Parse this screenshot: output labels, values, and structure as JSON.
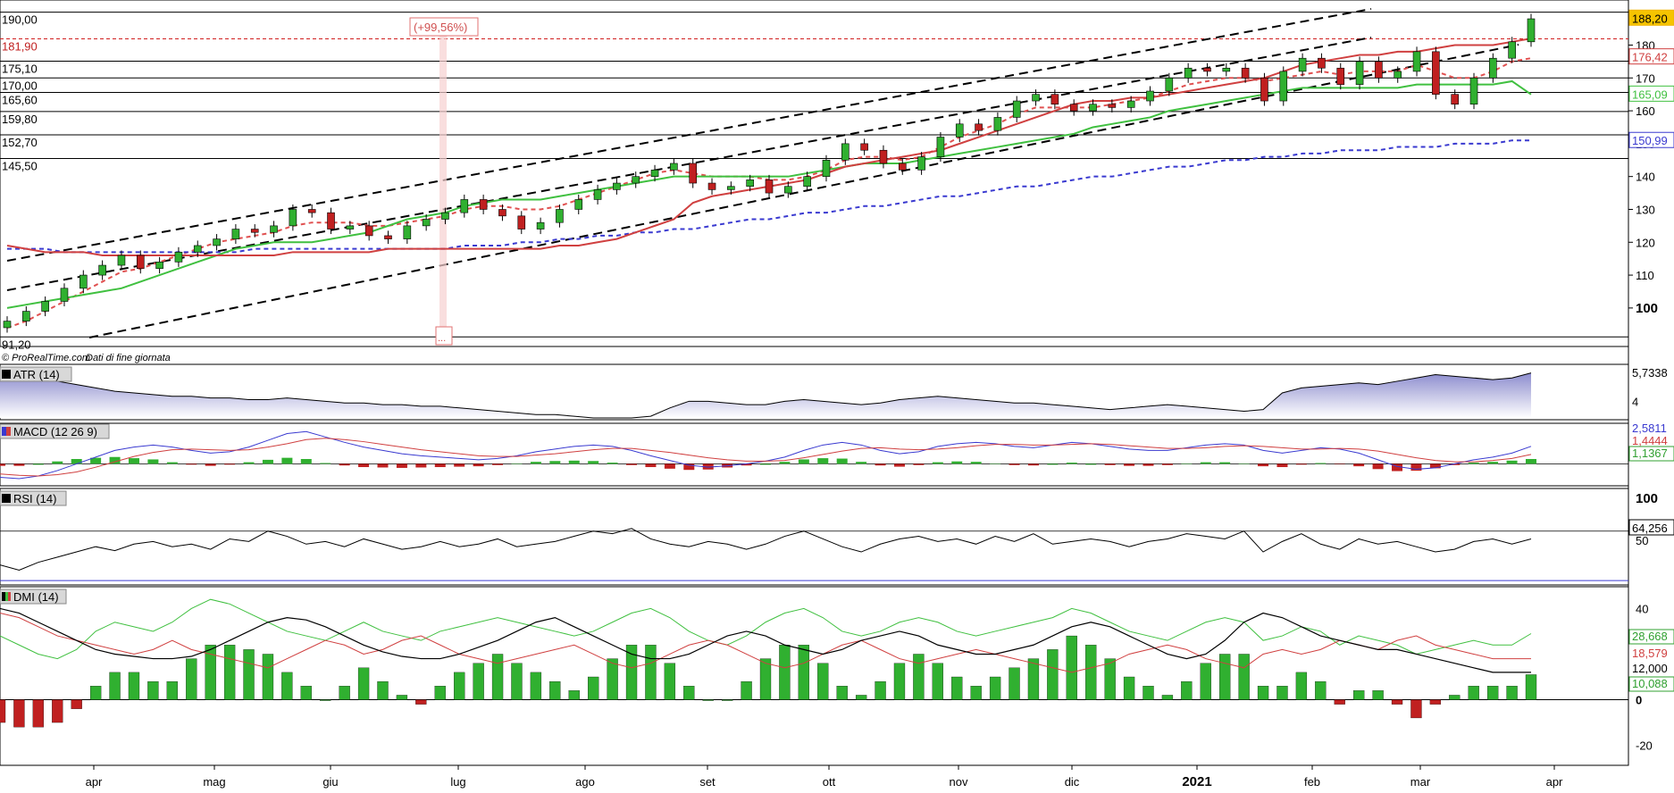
{
  "chart_data": [
    {
      "type": "candlestick",
      "panel": "price",
      "credit": "© ProRealTime.com",
      "credit_note": "Dati di fine giornata",
      "x_labels": [
        "apr",
        "mag",
        "giu",
        "lug",
        "ago",
        "set",
        "ott",
        "nov",
        "dic",
        "2021",
        "feb",
        "mar",
        "apr"
      ],
      "y_ticks": [
        100,
        110,
        120,
        130,
        140,
        150,
        160,
        170,
        180
      ],
      "ylim": [
        91,
        191
      ],
      "last_price": "188,20",
      "price_levels": [
        "190,00",
        "181,90",
        "175,10",
        "170,00",
        "165,60",
        "159,80",
        "152,70",
        "145,50",
        "91,20"
      ],
      "right_values": [
        "188,20",
        "176,42",
        "165,09",
        "150,99"
      ],
      "annotation": "(+99,56%)",
      "annotation_box": "...",
      "close_series": [
        96,
        99,
        102,
        106,
        110,
        113,
        116,
        112,
        114,
        117,
        119,
        121,
        124,
        123,
        125,
        130,
        129,
        124,
        125,
        122,
        121,
        125,
        127,
        129,
        133,
        130,
        128,
        124,
        126,
        130,
        133,
        136,
        138,
        140,
        142,
        144,
        138,
        136,
        137,
        139,
        135,
        137,
        140,
        145,
        150,
        148,
        144,
        142,
        146,
        152,
        156,
        154,
        158,
        163,
        165,
        162,
        160,
        162,
        161,
        163,
        166,
        170,
        173,
        172,
        173,
        170,
        163,
        172,
        176,
        173,
        168,
        175,
        170,
        172,
        178,
        165,
        162,
        170,
        176,
        181,
        188
      ],
      "overlay_series": [
        {
          "name": "ema-red-dashed",
          "color": "#e05050",
          "values": [
            94,
            96,
            99,
            102,
            105,
            108,
            111,
            112,
            114,
            116,
            118,
            120,
            121,
            122,
            123,
            125,
            126,
            126,
            126,
            125,
            125,
            126,
            127,
            128,
            130,
            131,
            131,
            130,
            130,
            131,
            133,
            135,
            137,
            139,
            141,
            142,
            141,
            140,
            140,
            140,
            139,
            139,
            140,
            142,
            145,
            146,
            146,
            145,
            146,
            149,
            152,
            154,
            156,
            159,
            161,
            161,
            161,
            161,
            162,
            163,
            164,
            166,
            168,
            169,
            170,
            170,
            169,
            170,
            171,
            172,
            171,
            172,
            172,
            172,
            174,
            172,
            170,
            170,
            172,
            175,
            176
          ]
        },
        {
          "name": "sma-blue-dashed",
          "color": "#3a3ad0",
          "values": [
            118,
            118,
            118,
            117,
            117,
            117,
            117,
            117,
            117,
            117,
            117,
            117,
            117,
            118,
            118,
            118,
            118,
            118,
            118,
            118,
            118,
            118,
            118,
            118,
            119,
            119,
            119,
            120,
            120,
            121,
            121,
            122,
            122,
            123,
            123,
            124,
            124,
            125,
            126,
            127,
            127,
            128,
            129,
            129,
            130,
            131,
            131,
            132,
            133,
            134,
            134,
            135,
            136,
            137,
            137,
            138,
            139,
            140,
            140,
            141,
            142,
            143,
            143,
            144,
            145,
            145,
            146,
            146,
            147,
            147,
            148,
            148,
            148,
            149,
            149,
            149,
            150,
            150,
            150,
            151,
            151
          ]
        },
        {
          "name": "stop-green",
          "color": "#40c040",
          "values": [
            100,
            101,
            102,
            103,
            104,
            105,
            106,
            108,
            110,
            112,
            114,
            116,
            118,
            119,
            120,
            120,
            120,
            121,
            122,
            123,
            125,
            127,
            128,
            129,
            131,
            132,
            133,
            133,
            133,
            134,
            135,
            136,
            137,
            138,
            139,
            140,
            140,
            140,
            140,
            140,
            140,
            140,
            141,
            142,
            143,
            144,
            144,
            144,
            145,
            146,
            147,
            148,
            149,
            150,
            151,
            152,
            153,
            155,
            156,
            157,
            158,
            160,
            161,
            162,
            163,
            164,
            165,
            166,
            167,
            167,
            167,
            167,
            167,
            167,
            168,
            168,
            168,
            168,
            168,
            169,
            165
          ]
        },
        {
          "name": "channel-red",
          "color": "#d04040",
          "values": [
            119,
            118,
            117,
            117,
            117,
            116,
            116,
            116,
            116,
            116,
            116,
            116,
            116,
            116,
            116,
            117,
            117,
            117,
            117,
            117,
            118,
            118,
            118,
            118,
            118,
            118,
            118,
            118,
            118,
            119,
            119,
            120,
            121,
            123,
            125,
            127,
            132,
            134,
            135,
            136,
            137,
            138,
            139,
            141,
            143,
            144,
            145,
            146,
            147,
            148,
            150,
            152,
            154,
            156,
            158,
            160,
            162,
            163,
            163,
            164,
            164,
            165,
            166,
            167,
            168,
            169,
            170,
            172,
            174,
            175,
            176,
            177,
            177,
            178,
            178,
            179,
            180,
            180,
            180,
            181,
            182
          ]
        }
      ]
    },
    {
      "type": "area",
      "panel": "atr",
      "title": "ATR (14)",
      "right_values": [
        "5,7338",
        "4"
      ],
      "values": [
        5.6,
        5.8,
        5.5,
        5.2,
        5.0,
        4.8,
        4.6,
        4.5,
        4.4,
        4.3,
        4.3,
        4.2,
        4.2,
        4.1,
        4.1,
        4.2,
        4.1,
        4.0,
        3.9,
        3.9,
        3.8,
        3.8,
        3.7,
        3.7,
        3.6,
        3.5,
        3.4,
        3.3,
        3.2,
        3.2,
        3.1,
        3.0,
        3.0,
        3.0,
        3.1,
        3.6,
        4.0,
        4.0,
        3.9,
        3.8,
        3.8,
        4.0,
        4.1,
        4.0,
        3.9,
        3.8,
        3.9,
        4.1,
        4.2,
        4.3,
        4.2,
        4.1,
        4.0,
        3.9,
        3.9,
        3.8,
        3.7,
        3.6,
        3.5,
        3.6,
        3.7,
        3.8,
        3.7,
        3.6,
        3.5,
        3.4,
        3.5,
        4.5,
        4.8,
        4.9,
        5.0,
        5.1,
        5.0,
        5.2,
        5.4,
        5.6,
        5.5,
        5.4,
        5.3,
        5.4,
        5.7
      ],
      "ylim": [
        3,
        6
      ]
    },
    {
      "type": "line-bar",
      "panel": "macd",
      "title": "MACD (12 26 9)",
      "right_values": [
        "2,5811",
        "1,4444",
        "1,1367"
      ],
      "macd": [
        -2,
        -2.2,
        -1.8,
        -1.0,
        0,
        1,
        2,
        2.5,
        2.8,
        2.5,
        2,
        1.6,
        1.8,
        2.5,
        3.5,
        4.5,
        4.8,
        4.0,
        3.2,
        2.5,
        2.0,
        1.5,
        1.2,
        1.0,
        0.8,
        0.6,
        0.8,
        1.2,
        1.8,
        2.2,
        2.6,
        2.8,
        2.6,
        2.0,
        1.2,
        0.5,
        -0.2,
        -0.5,
        -0.3,
        0,
        0.4,
        1.0,
        2.0,
        2.8,
        3.2,
        2.8,
        2.0,
        1.5,
        1.8,
        2.6,
        3.0,
        3.2,
        3.0,
        2.6,
        2.4,
        2.8,
        3.2,
        3.0,
        2.6,
        2.2,
        2.0,
        2.0,
        2.4,
        2.8,
        3.0,
        2.8,
        2.0,
        1.6,
        2.0,
        2.4,
        2.2,
        1.6,
        0.6,
        -0.4,
        -0.8,
        -0.6,
        0,
        0.6,
        1.0,
        1.6,
        2.6
      ],
      "signal": [
        -1.5,
        -1.7,
        -1.8,
        -1.6,
        -1.2,
        -0.5,
        0.3,
        1.1,
        1.7,
        2.1,
        2.2,
        2.1,
        2.0,
        2.1,
        2.5,
        3.0,
        3.6,
        3.8,
        3.6,
        3.3,
        2.9,
        2.5,
        2.1,
        1.8,
        1.5,
        1.2,
        1.1,
        1.1,
        1.3,
        1.5,
        1.8,
        2.1,
        2.3,
        2.3,
        2.0,
        1.7,
        1.3,
        0.9,
        0.6,
        0.4,
        0.4,
        0.5,
        0.9,
        1.4,
        1.9,
        2.3,
        2.4,
        2.2,
        2.1,
        2.2,
        2.4,
        2.7,
        2.9,
        2.9,
        2.8,
        2.8,
        2.9,
        3.0,
        2.9,
        2.7,
        2.5,
        2.3,
        2.3,
        2.4,
        2.6,
        2.7,
        2.6,
        2.4,
        2.2,
        2.2,
        2.3,
        2.2,
        1.9,
        1.4,
        0.9,
        0.5,
        0.3,
        0.3,
        0.5,
        0.8,
        1.4
      ],
      "ylim": [
        -3,
        5.5
      ]
    },
    {
      "type": "line",
      "panel": "rsi",
      "title": "RSI (14)",
      "y_ticks": [
        "100",
        "50"
      ],
      "right_values": [
        "64,256",
        "50"
      ],
      "values": [
        44,
        40,
        46,
        50,
        54,
        58,
        55,
        60,
        62,
        58,
        60,
        56,
        64,
        62,
        70,
        66,
        60,
        62,
        58,
        64,
        60,
        56,
        58,
        62,
        58,
        60,
        64,
        58,
        60,
        62,
        66,
        70,
        68,
        72,
        64,
        60,
        58,
        62,
        60,
        56,
        60,
        66,
        70,
        64,
        58,
        54,
        60,
        64,
        66,
        62,
        64,
        60,
        66,
        62,
        68,
        60,
        62,
        64,
        62,
        58,
        62,
        64,
        68,
        66,
        64,
        70,
        54,
        62,
        68,
        60,
        56,
        64,
        60,
        62,
        58,
        54,
        56,
        62,
        64,
        60,
        64
      ],
      "ylim": [
        30,
        100
      ]
    },
    {
      "type": "line-bar",
      "panel": "dmi",
      "title": "DMI (14)",
      "y_ticks": [
        "40",
        "0",
        "-20"
      ],
      "right_values": [
        "28,668",
        "18,579",
        "12,000",
        "10,088"
      ],
      "adx": [
        40,
        38,
        34,
        30,
        26,
        22,
        20,
        19,
        18,
        18,
        19,
        22,
        26,
        30,
        34,
        36,
        35,
        32,
        28,
        24,
        21,
        19,
        18,
        18,
        20,
        23,
        26,
        30,
        34,
        36,
        32,
        28,
        24,
        20,
        18,
        18,
        20,
        24,
        28,
        30,
        28,
        24,
        22,
        20,
        22,
        26,
        28,
        30,
        28,
        24,
        22,
        20,
        20,
        22,
        24,
        28,
        32,
        34,
        32,
        28,
        24,
        20,
        18,
        20,
        26,
        34,
        38,
        36,
        32,
        28,
        26,
        24,
        22,
        22,
        20,
        18,
        16,
        14,
        12,
        12,
        12
      ],
      "dip": [
        28,
        24,
        20,
        18,
        22,
        30,
        34,
        32,
        30,
        34,
        40,
        44,
        42,
        38,
        34,
        30,
        28,
        26,
        30,
        34,
        30,
        28,
        26,
        30,
        32,
        34,
        36,
        34,
        32,
        30,
        28,
        30,
        34,
        38,
        40,
        36,
        30,
        26,
        24,
        28,
        34,
        38,
        40,
        36,
        30,
        28,
        30,
        34,
        36,
        34,
        30,
        28,
        30,
        32,
        34,
        36,
        40,
        38,
        34,
        30,
        28,
        26,
        30,
        34,
        36,
        34,
        26,
        28,
        32,
        30,
        24,
        28,
        26,
        24,
        20,
        22,
        24,
        26,
        24,
        24,
        29
      ],
      "dim": [
        38,
        36,
        32,
        28,
        26,
        24,
        22,
        20,
        22,
        26,
        22,
        20,
        18,
        16,
        14,
        18,
        22,
        26,
        24,
        20,
        22,
        26,
        28,
        24,
        20,
        18,
        16,
        18,
        20,
        22,
        24,
        20,
        16,
        14,
        16,
        20,
        24,
        26,
        24,
        20,
        16,
        14,
        16,
        20,
        24,
        26,
        22,
        18,
        16,
        18,
        20,
        22,
        20,
        18,
        16,
        14,
        12,
        14,
        16,
        20,
        22,
        24,
        22,
        18,
        16,
        14,
        20,
        22,
        20,
        22,
        26,
        24,
        22,
        26,
        28,
        24,
        22,
        20,
        18,
        18,
        18
      ],
      "ylim": [
        -28,
        48
      ]
    }
  ]
}
